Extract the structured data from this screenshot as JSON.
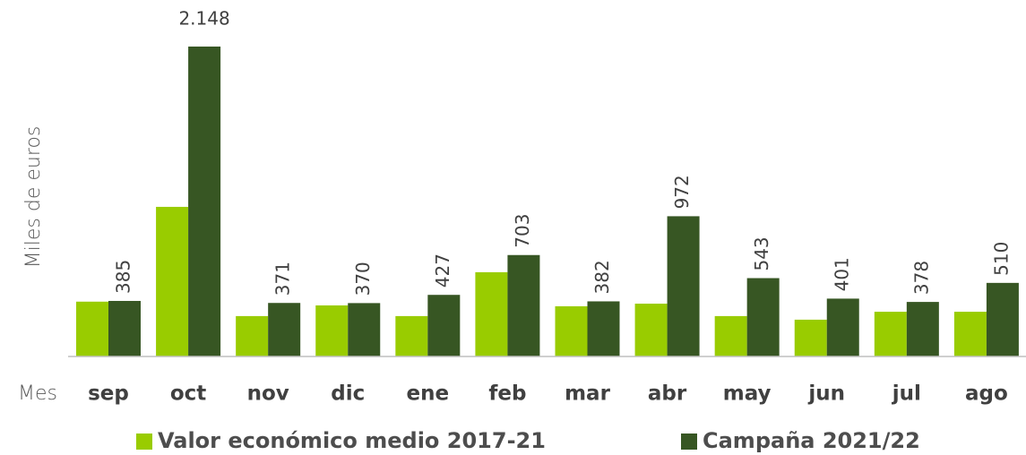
{
  "chart_data": {
    "type": "bar",
    "y_label": "Miles de euros",
    "x_label": "Mes",
    "categories": [
      "sep",
      "oct",
      "nov",
      "dic",
      "ene",
      "feb",
      "mar",
      "abr",
      "may",
      "jun",
      "jul",
      "ago"
    ],
    "series": [
      {
        "name": "Valor económico medio 2017-21",
        "color": "#99cc00",
        "values": [
          380,
          1037,
          280,
          354,
          280,
          584,
          348,
          366,
          280,
          255,
          310,
          310
        ]
      },
      {
        "name": "Campaña 2021/22",
        "color": "#375623",
        "values": [
          385,
          2148,
          371,
          370,
          427,
          703,
          382,
          972,
          543,
          401,
          378,
          510
        ],
        "value_labels": [
          "385",
          "2.148",
          "371",
          "370",
          "427",
          "703",
          "382",
          "972",
          "543",
          "401",
          "378",
          "510"
        ]
      }
    ],
    "ylim": [
      0,
      2200
    ],
    "legend": "bottom"
  }
}
